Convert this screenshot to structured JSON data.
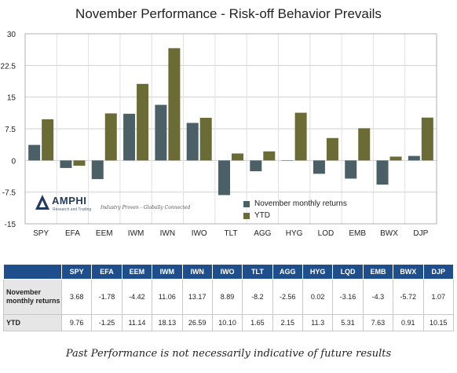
{
  "chart_data": {
    "type": "bar",
    "title": "November Performance - Risk-off Behavior Prevails",
    "categories": [
      "SPY",
      "EFA",
      "EEM",
      "IWM",
      "IWN",
      "IWO",
      "TLT",
      "AGG",
      "HYG",
      "LQD",
      "EMB",
      "BWX",
      "DJP"
    ],
    "series": [
      {
        "name": "November monthly returns",
        "color": "#4a5f66",
        "values": [
          3.68,
          -1.78,
          -4.42,
          11.06,
          13.17,
          8.89,
          -8.2,
          -2.56,
          0.02,
          -3.16,
          -4.3,
          -5.72,
          1.07
        ]
      },
      {
        "name": "YTD",
        "color": "#6b6b35",
        "values": [
          9.76,
          -1.25,
          11.14,
          18.13,
          26.59,
          10.1,
          1.65,
          2.15,
          11.3,
          5.31,
          7.63,
          0.91,
          10.15
        ]
      }
    ],
    "ylim": [
      -15,
      30
    ],
    "yticks": [
      "30",
      "22.5",
      "15",
      "7.5",
      "0",
      "-7.5",
      "-15"
    ],
    "ytick_values": [
      30,
      22.5,
      15,
      7.5,
      0,
      -7.5,
      -15
    ],
    "grid": true,
    "legend": "bottom-right"
  },
  "logo": {
    "name": "AMPHI",
    "sub": "Research and Trading",
    "tagline": "Industry Proven - Globally Connected"
  },
  "table": {
    "headers": [
      "SPY",
      "EFA",
      "EEM",
      "IWM",
      "IWN",
      "IWO",
      "TLT",
      "AGG",
      "HYG",
      "LQD",
      "EMB",
      "BWX",
      "DJP"
    ],
    "rows": [
      {
        "label": "November monthly returns",
        "values": [
          "3.68",
          "-1.78",
          "-4.42",
          "11.06",
          "13.17",
          "8.89",
          "-8.2",
          "-2.56",
          "0.02",
          "-3.16",
          "-4.3",
          "-5.72",
          "1.07"
        ]
      },
      {
        "label": "YTD",
        "values": [
          "9.76",
          "-1.25",
          "11.14",
          "18.13",
          "26.59",
          "10.10",
          "1.65",
          "2.15",
          "11.3",
          "5.31",
          "7.63",
          "0.91",
          "10.15"
        ]
      }
    ]
  },
  "footnote": "Past Performance is not necessarily indicative of future results"
}
